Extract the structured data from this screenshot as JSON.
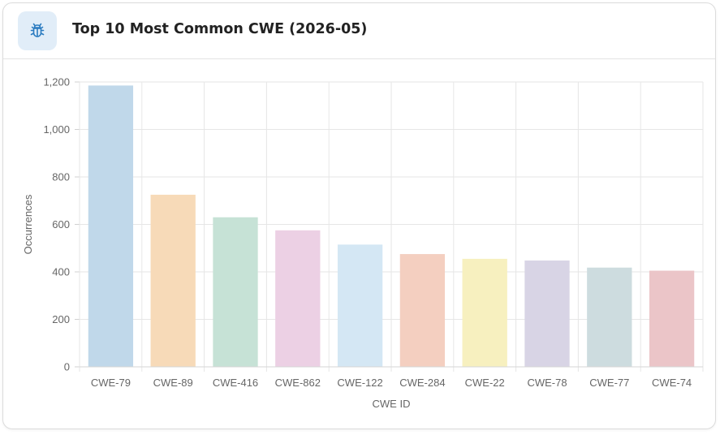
{
  "header": {
    "title": "Top 10 Most Common CWE (2026-05)",
    "icon": "bug-icon"
  },
  "chart_data": {
    "type": "bar",
    "title": "Top 10 Most Common CWE (2026-05)",
    "xlabel": "CWE ID",
    "ylabel": "Occurrences",
    "categories": [
      "CWE-79",
      "CWE-89",
      "CWE-416",
      "CWE-862",
      "CWE-122",
      "CWE-284",
      "CWE-22",
      "CWE-78",
      "CWE-77",
      "CWE-74"
    ],
    "values": [
      1185,
      725,
      630,
      575,
      515,
      475,
      455,
      448,
      418,
      405
    ],
    "ylim": [
      0,
      1200
    ],
    "yticks": [
      0,
      200,
      400,
      600,
      800,
      1000,
      1200
    ],
    "ytick_labels": [
      "0",
      "200",
      "400",
      "600",
      "800",
      "1,000",
      "1,200"
    ],
    "grid": true,
    "legend": "none",
    "colors": [
      "#c0d8ea",
      "#f7dab8",
      "#c6e2d6",
      "#ecd0e4",
      "#d4e7f4",
      "#f4cfc0",
      "#f7f0bf",
      "#d8d4e5",
      "#cddcdf",
      "#ebc5c8"
    ]
  }
}
